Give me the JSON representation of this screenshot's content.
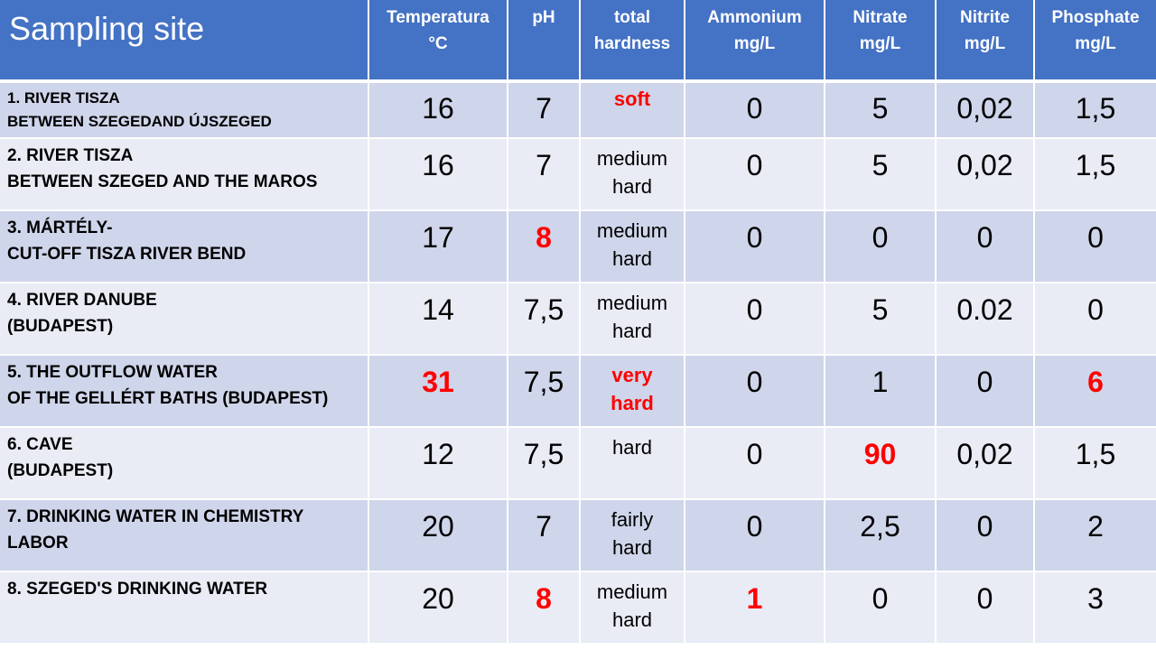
{
  "table": {
    "headers": {
      "site": "Sampling site",
      "temp": "Temperatura\n°C",
      "ph": "pH",
      "hardness": "total\nhardness",
      "ammonium": "Ammonium\nmg/L",
      "nitrate": "Nitrate\nmg/L",
      "nitrite": "Nitrite\nmg/L",
      "phosphate": "Phosphate\nmg/L"
    },
    "rows": [
      {
        "site": "1. RIVER TISZA\nBETWEEN  SZEGEDAND  ÚJSZEGED",
        "temp": "16",
        "ph": "7",
        "hardness": "soft",
        "ammonium": "0",
        "nitrate": "5",
        "nitrite": "0,02",
        "phosphate": "1,5"
      },
      {
        "site": "2. RIVER TISZA\nBETWEEN SZEGED AND THE MAROS",
        "temp": "16",
        "ph": "7",
        "hardness": "medium\nhard",
        "ammonium": "0",
        "nitrate": "5",
        "nitrite": "0,02",
        "phosphate": "1,5"
      },
      {
        "site": "3. MÁRTÉLY-\nCUT-OFF TISZA RIVER BEND",
        "temp": "17",
        "ph": "8",
        "hardness": "medium\nhard",
        "ammonium": "0",
        "nitrate": "0",
        "nitrite": "0",
        "phosphate": "0"
      },
      {
        "site": "4. RIVER DANUBE\n(BUDAPEST)",
        "temp": "14",
        "ph": "7,5",
        "hardness": "medium\nhard",
        "ammonium": "0",
        "nitrate": "5",
        "nitrite": "0.02",
        "phosphate": "0"
      },
      {
        "site": "5. THE OUTFLOW WATER\nOF THE GELLÉRT BATHS (BUDAPEST)",
        "temp": "31",
        "ph": "7,5",
        "hardness": "very\nhard",
        "ammonium": "0",
        "nitrate": "1",
        "nitrite": "0",
        "phosphate": "6"
      },
      {
        "site": "6. CAVE\n(BUDAPEST)",
        "temp": "12",
        "ph": "7,5",
        "hardness": "hard",
        "ammonium": "0",
        "nitrate": "90",
        "nitrite": "0,02",
        "phosphate": "1,5"
      },
      {
        "site": "7. DRINKING WATER IN CHEMISTRY\nLABOR",
        "temp": "20",
        "ph": "7",
        "hardness": "fairly\nhard",
        "ammonium": "0",
        "nitrate": "2,5",
        "nitrite": "0",
        "phosphate": "2"
      },
      {
        "site": "8. SZEGED'S DRINKING WATER",
        "temp": "20",
        "ph": "8",
        "hardness": "medium\nhard",
        "ammonium": "1",
        "nitrate": "0",
        "nitrite": "0",
        "phosphate": "3"
      }
    ]
  },
  "colors": {
    "header_bg": "#4472c4",
    "row_dark": "#cfd5ea",
    "row_light": "#e9ebf5",
    "highlight": "#ff0000"
  }
}
